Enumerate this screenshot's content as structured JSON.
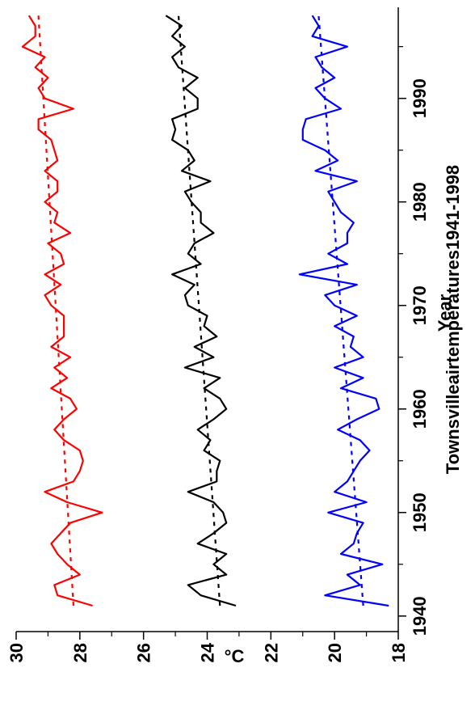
{
  "chart_data": {
    "type": "line",
    "title": "Townsvilleairtemperatures1941-1998",
    "xlabel": "Year",
    "ylabel": "°C",
    "xlim": [
      1938.5,
      1998.8
    ],
    "ylim": [
      18,
      30
    ],
    "x_ticks": [
      1940,
      1950,
      1960,
      1970,
      1980,
      1990
    ],
    "y_ticks": [
      18,
      20,
      22,
      24,
      26,
      28,
      30
    ],
    "orientation": "rotated 90° counter-clockwise",
    "legend": "none",
    "grid": false,
    "x": [
      1941,
      1942,
      1943,
      1944,
      1945,
      1946,
      1947,
      1948,
      1949,
      1950,
      1951,
      1952,
      1953,
      1954,
      1955,
      1956,
      1957,
      1958,
      1959,
      1960,
      1961,
      1962,
      1963,
      1964,
      1965,
      1966,
      1967,
      1968,
      1969,
      1970,
      1971,
      1972,
      1973,
      1974,
      1975,
      1976,
      1977,
      1978,
      1979,
      1980,
      1981,
      1982,
      1983,
      1984,
      1985,
      1986,
      1987,
      1988,
      1989,
      1990,
      1991,
      1992,
      1993,
      1994,
      1995,
      1996,
      1997,
      1998
    ],
    "series": [
      {
        "color": "#ff0000",
        "values": [
          27.6,
          28.7,
          28.8,
          28.0,
          28.4,
          28.7,
          28.9,
          28.6,
          28.3,
          27.3,
          28.4,
          29.1,
          28.2,
          28.0,
          27.9,
          28.0,
          28.5,
          28.8,
          28.5,
          28.1,
          28.3,
          28.9,
          28.4,
          28.8,
          28.3,
          28.9,
          28.5,
          28.5,
          28.5,
          28.9,
          29.1,
          28.6,
          29.1,
          28.5,
          28.6,
          29.0,
          28.3,
          28.8,
          28.7,
          29.1,
          28.7,
          28.7,
          29.1,
          28.7,
          28.8,
          28.9,
          29.3,
          29.3,
          28.2,
          29.1,
          29.3,
          29.0,
          29.4,
          29.1,
          29.8,
          29.4,
          29.4,
          29.6
        ],
        "trend": [
          28.2,
          29.3
        ]
      },
      {
        "color": "#000000",
        "values": [
          23.1,
          24.2,
          24.6,
          23.4,
          23.8,
          23.4,
          24.3,
          23.8,
          23.4,
          23.5,
          23.8,
          24.6,
          23.7,
          23.7,
          23.6,
          24.1,
          23.9,
          24.3,
          23.8,
          23.4,
          23.6,
          24.1,
          23.6,
          24.7,
          23.8,
          24.4,
          23.7,
          24.1,
          24.0,
          24.6,
          24.7,
          24.4,
          25.1,
          24.2,
          24.6,
          24.4,
          23.8,
          24.2,
          24.2,
          24.5,
          24.7,
          23.9,
          24.8,
          24.4,
          24.6,
          25.1,
          25.0,
          25.1,
          24.3,
          24.3,
          24.7,
          24.3,
          24.9,
          25.1,
          24.7,
          25.1,
          24.8,
          25.3
        ],
        "trend": [
          23.6,
          24.9
        ]
      },
      {
        "color": "#0000ff",
        "values": [
          18.3,
          20.3,
          19.2,
          19.6,
          18.5,
          19.8,
          19.4,
          19.3,
          19.1,
          20.2,
          19.0,
          20.0,
          19.6,
          19.4,
          19.2,
          18.9,
          19.2,
          19.9,
          19.3,
          18.6,
          18.7,
          19.8,
          19.1,
          20.0,
          19.1,
          19.5,
          19.4,
          20.0,
          19.3,
          20.0,
          20.3,
          19.3,
          21.1,
          19.6,
          20.2,
          19.6,
          19.6,
          19.4,
          19.8,
          20.0,
          20.2,
          19.3,
          20.6,
          19.9,
          20.3,
          21.0,
          21.0,
          20.9,
          19.8,
          20.3,
          20.6,
          20.0,
          20.4,
          20.6,
          19.6,
          20.7,
          20.5,
          20.7
        ],
        "trend": [
          19.1,
          20.5
        ]
      }
    ]
  }
}
